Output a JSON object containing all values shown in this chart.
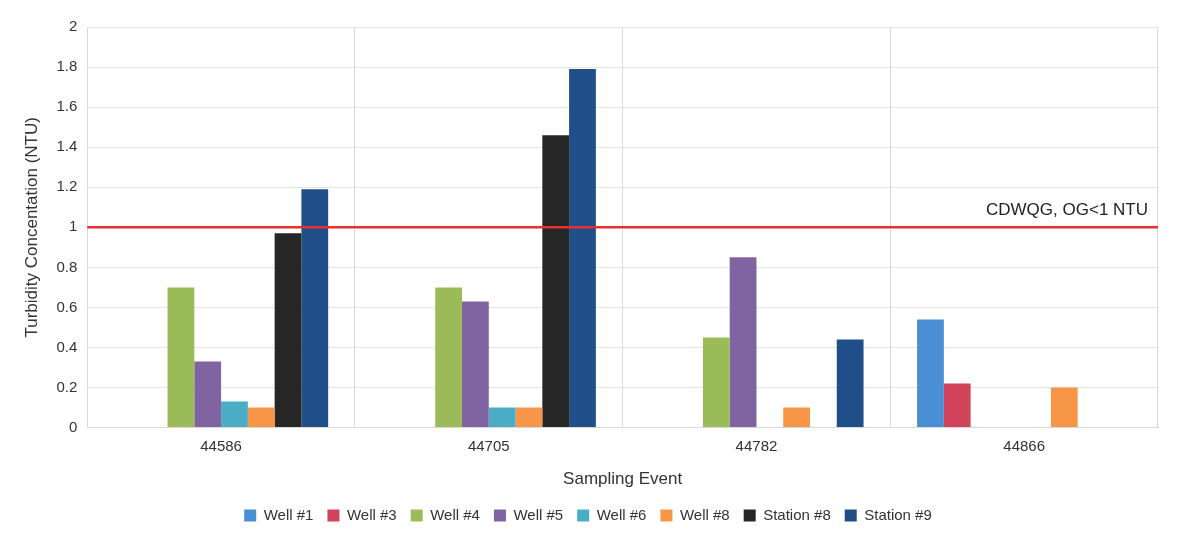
{
  "chart_data": {
    "type": "bar",
    "xlabel": "Sampling Event",
    "ylabel": "Turbidity Concentation (NTU)",
    "categories": [
      "44586",
      "44705",
      "44782",
      "44866"
    ],
    "series": [
      {
        "name": "Well #1",
        "color": "#4a8fd4",
        "values": [
          null,
          null,
          null,
          0.54
        ]
      },
      {
        "name": "Well #3",
        "color": "#d0435a",
        "values": [
          null,
          null,
          null,
          0.22
        ]
      },
      {
        "name": "Well #4",
        "color": "#9bbb59",
        "values": [
          0.7,
          0.7,
          0.45,
          null
        ]
      },
      {
        "name": "Well #5",
        "color": "#8064a2",
        "values": [
          0.33,
          0.63,
          0.85,
          null
        ]
      },
      {
        "name": "Well #6",
        "color": "#4bacc6",
        "values": [
          0.13,
          0.1,
          null,
          null
        ]
      },
      {
        "name": "Well #8",
        "color": "#f79646",
        "values": [
          0.1,
          0.1,
          0.1,
          0.2
        ]
      },
      {
        "name": "Station #8",
        "color": "#262626",
        "values": [
          0.97,
          1.46,
          null,
          null
        ]
      },
      {
        "name": "Station #9",
        "color": "#1f4e89",
        "values": [
          1.19,
          1.79,
          0.44,
          null
        ]
      }
    ],
    "ylim": [
      0,
      2
    ],
    "yticks": [
      0,
      0.2,
      0.4,
      0.6,
      0.8,
      1,
      1.2,
      1.4,
      1.6,
      1.8,
      2
    ],
    "ref_lines": [
      {
        "axis": "y",
        "value": 1,
        "label": "CDWQG, OG<1 NTU",
        "color": "#e8312f"
      }
    ],
    "grid": true,
    "legend": "bottom"
  }
}
